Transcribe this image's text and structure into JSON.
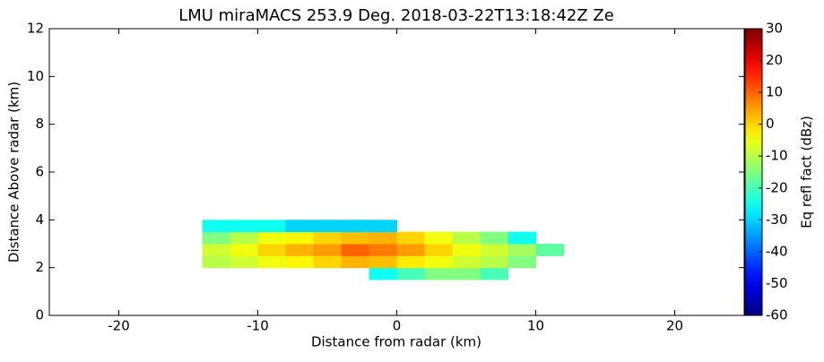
{
  "chart_data": {
    "type": "heatmap",
    "title": "LMU miraMACS 253.9 Deg. 2018-03-22T13:18:42Z  Ze",
    "x_label": "Distance from radar (km)",
    "y_label": "Distance Above radar  (km)",
    "colorbar_label": "Eq refl fact (dBz)",
    "colormap": "jet",
    "xlim": [
      -25,
      25
    ],
    "xticks": [
      -20,
      -10,
      0,
      10,
      20
    ],
    "ylim": [
      0,
      12
    ],
    "yticks": [
      0,
      2,
      4,
      6,
      8,
      10,
      12
    ],
    "clim": [
      -60,
      30
    ],
    "cticks": [
      -60,
      -50,
      -40,
      -30,
      -20,
      -10,
      0,
      10,
      20,
      30
    ],
    "x_edges": [
      -14,
      -12,
      -10,
      -8,
      -6,
      -4,
      -2,
      0,
      2,
      4,
      6,
      8,
      10,
      12
    ],
    "y_edges": [
      1.5,
      2,
      2.5,
      3,
      3.5,
      4
    ],
    "z": [
      [
        null,
        null,
        null,
        null,
        null,
        null,
        -25,
        -20,
        -15,
        -15,
        -20,
        null,
        null
      ],
      [
        -10,
        -8,
        -5,
        -3,
        0,
        3,
        2,
        -2,
        -5,
        -8,
        -10,
        -15,
        null
      ],
      [
        -8,
        -5,
        0,
        3,
        5,
        10,
        8,
        5,
        0,
        -5,
        -8,
        -12,
        -18
      ],
      [
        -15,
        -10,
        -5,
        -3,
        0,
        2,
        3,
        0,
        -5,
        -10,
        -15,
        -25,
        null
      ],
      [
        -25,
        -25,
        -25,
        -30,
        -30,
        -30,
        -30,
        null,
        null,
        null,
        null,
        null,
        null
      ]
    ]
  }
}
